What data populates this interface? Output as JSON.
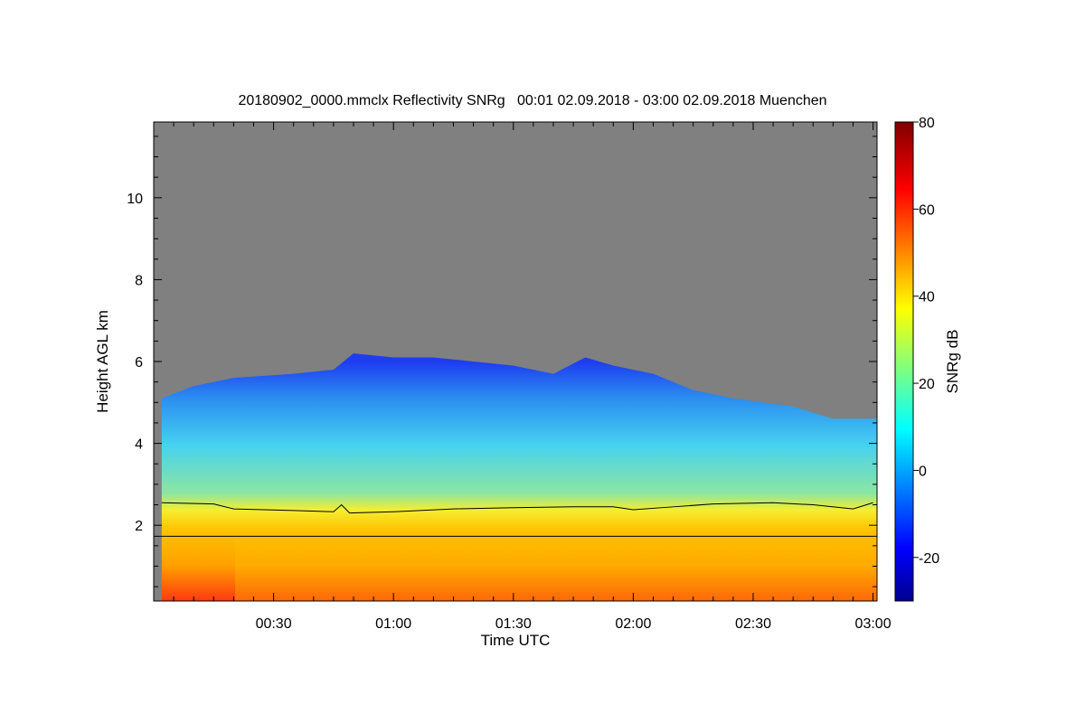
{
  "chart_data": {
    "type": "heatmap",
    "title": "20180902_0000.mmclx Reflectivity SNRg   00:01 02.09.2018 - 03:00 02.09.2018 Muenchen",
    "xlabel": "Time UTC",
    "ylabel": "Height AGL km",
    "colorbar_label": "SNRg dB",
    "x_range": [
      "00:01",
      "03:00"
    ],
    "x_ticks": [
      "00:30",
      "01:00",
      "01:30",
      "02:00",
      "02:30",
      "03:00"
    ],
    "ylim": [
      0.15,
      11.85
    ],
    "y_ticks": [
      2,
      4,
      6,
      8,
      10
    ],
    "color_range": [
      -30,
      80
    ],
    "color_ticks": [
      -20,
      0,
      20,
      40,
      60,
      80
    ],
    "colormap": "jet",
    "background_color": "#808080",
    "echo_top_km": [
      {
        "time": "00:02",
        "height": 5.1
      },
      {
        "time": "00:10",
        "height": 5.4
      },
      {
        "time": "00:20",
        "height": 5.6
      },
      {
        "time": "00:35",
        "height": 5.7
      },
      {
        "time": "00:45",
        "height": 5.8
      },
      {
        "time": "00:50",
        "height": 6.2
      },
      {
        "time": "01:00",
        "height": 6.1
      },
      {
        "time": "01:10",
        "height": 6.1
      },
      {
        "time": "01:20",
        "height": 6.0
      },
      {
        "time": "01:30",
        "height": 5.9
      },
      {
        "time": "01:40",
        "height": 5.7
      },
      {
        "time": "01:48",
        "height": 6.1
      },
      {
        "time": "01:55",
        "height": 5.9
      },
      {
        "time": "02:05",
        "height": 5.7
      },
      {
        "time": "02:15",
        "height": 5.3
      },
      {
        "time": "02:25",
        "height": 5.1
      },
      {
        "time": "02:40",
        "height": 4.9
      },
      {
        "time": "02:50",
        "height": 4.6
      },
      {
        "time": "03:00",
        "height": 4.6
      }
    ],
    "melting_layer_km": [
      {
        "time": "00:02",
        "height": 2.55
      },
      {
        "time": "00:15",
        "height": 2.52
      },
      {
        "time": "00:20",
        "height": 2.4
      },
      {
        "time": "00:35",
        "height": 2.36
      },
      {
        "time": "00:45",
        "height": 2.33
      },
      {
        "time": "00:47",
        "height": 2.5
      },
      {
        "time": "00:49",
        "height": 2.3
      },
      {
        "time": "01:00",
        "height": 2.33
      },
      {
        "time": "01:15",
        "height": 2.4
      },
      {
        "time": "01:30",
        "height": 2.43
      },
      {
        "time": "01:45",
        "height": 2.45
      },
      {
        "time": "01:55",
        "height": 2.45
      },
      {
        "time": "02:00",
        "height": 2.38
      },
      {
        "time": "02:10",
        "height": 2.45
      },
      {
        "time": "02:20",
        "height": 2.52
      },
      {
        "time": "02:35",
        "height": 2.55
      },
      {
        "time": "02:45",
        "height": 2.5
      },
      {
        "time": "02:55",
        "height": 2.4
      },
      {
        "time": "03:00",
        "height": 2.55
      }
    ],
    "reference_line_km": 1.73
  }
}
